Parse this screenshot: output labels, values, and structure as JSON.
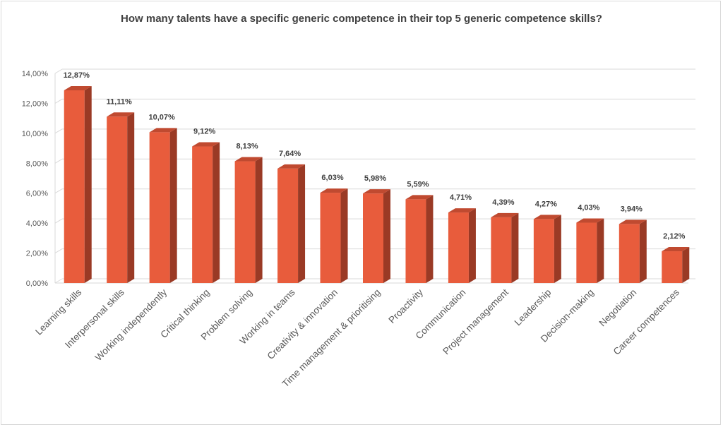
{
  "chart_data": {
    "type": "bar",
    "title": "How many talents have a specific generic competence in their top 5 generic competence skills?",
    "xlabel": "",
    "ylabel": "",
    "ylim": [
      0,
      14
    ],
    "yticks": [
      "0,00%",
      "2,00%",
      "4,00%",
      "6,00%",
      "8,00%",
      "10,00%",
      "12,00%",
      "14,00%"
    ],
    "grid": true,
    "legend": "none",
    "bar_color": "#e85c3c",
    "bar_side_color": "#9a3a25",
    "bar_top_color": "#c04a30",
    "categories": [
      "Learning skills",
      "Interpersonal skills",
      "Working independently",
      "Critical thinking",
      "Problem solving",
      "Working in teams",
      "Creativity & innovation",
      "Time management & prioritising",
      "Proactivity",
      "Communication",
      "Project management",
      "Leadership",
      "Decision-making",
      "Negotiation",
      "Career competences"
    ],
    "values": [
      12.87,
      11.11,
      10.07,
      9.12,
      8.13,
      7.64,
      6.03,
      5.98,
      5.59,
      4.71,
      4.39,
      4.27,
      4.03,
      3.94,
      2.12
    ],
    "data_labels": [
      "12,87%",
      "11,11%",
      "10,07%",
      "9,12%",
      "8,13%",
      "7,64%",
      "6,03%",
      "5,98%",
      "5,59%",
      "4,71%",
      "4,39%",
      "4,27%",
      "4,03%",
      "3,94%",
      "2,12%"
    ]
  }
}
